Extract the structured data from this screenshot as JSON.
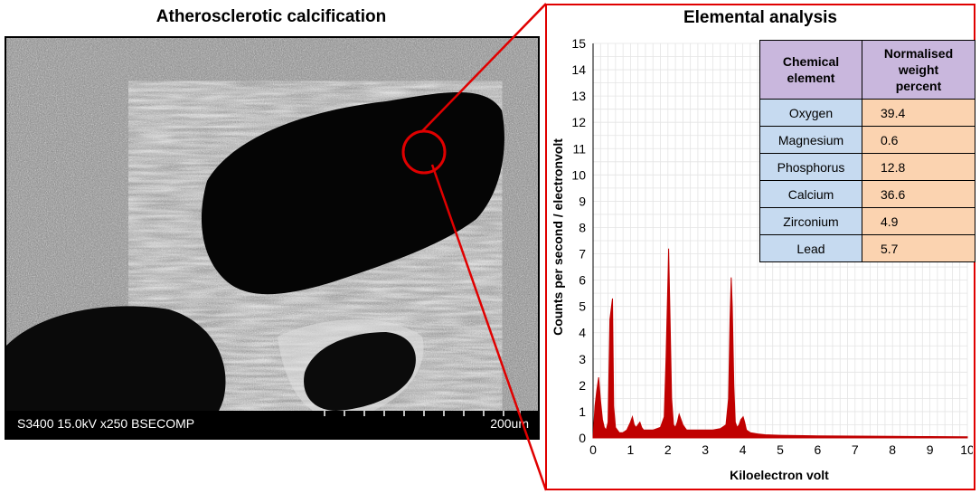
{
  "left_panel": {
    "title": "Atherosclerotic calcification",
    "sem_label": "S3400 15.0kV x250 BSECOMP",
    "scale_label": "200um"
  },
  "right_panel": {
    "title": "Elemental analysis"
  },
  "table": {
    "header_element": [
      "Chemical",
      "element"
    ],
    "header_percent": [
      "Normalised",
      "weight",
      "percent"
    ],
    "rows": [
      {
        "element": "Oxygen",
        "percent": "39.4"
      },
      {
        "element": "Magnesium",
        "percent": "0.6"
      },
      {
        "element": "Phosphorus",
        "percent": "12.8"
      },
      {
        "element": "Calcium",
        "percent": "36.6"
      },
      {
        "element": "Zirconium",
        "percent": "4.9"
      },
      {
        "element": "Lead",
        "percent": "5.7"
      }
    ]
  },
  "colors": {
    "highlight": "#e00000",
    "spectrum": "#c00000",
    "element_cells": "#c6daf0",
    "percent_cells": "#fbd3b0",
    "header_cells": "#c9b7dd"
  },
  "chart_data": {
    "type": "area",
    "title": "Elemental analysis",
    "xlabel": "Kiloelectron volt",
    "ylabel": "Counts per second / electronvolt",
    "xlim": [
      0,
      10
    ],
    "ylim": [
      0,
      15
    ],
    "x_ticks": [
      "0",
      "1",
      "2",
      "3",
      "4",
      "5",
      "6",
      "7",
      "8",
      "9",
      "10"
    ],
    "y_ticks": [
      "0",
      "1",
      "2",
      "3",
      "4",
      "5",
      "6",
      "7",
      "8",
      "9",
      "10",
      "11",
      "12",
      "13",
      "14",
      "15"
    ],
    "grid": true,
    "series": [
      {
        "x": [
          0,
          0.05,
          0.1,
          0.15,
          0.2,
          0.25,
          0.3,
          0.35,
          0.4,
          0.45,
          0.52,
          0.55,
          0.6,
          0.7,
          0.8,
          0.9,
          1.0,
          1.05,
          1.1,
          1.15,
          1.2,
          1.25,
          1.3,
          1.35,
          1.4,
          1.5,
          1.6,
          1.7,
          1.8,
          1.9,
          1.95,
          2.0,
          2.02,
          2.05,
          2.1,
          2.15,
          2.2,
          2.25,
          2.3,
          2.35,
          2.4,
          2.45,
          2.5,
          2.6,
          2.7,
          2.8,
          2.9,
          3.0,
          3.2,
          3.4,
          3.55,
          3.62,
          3.66,
          3.69,
          3.72,
          3.76,
          3.8,
          3.85,
          3.9,
          3.95,
          4.01,
          4.05,
          4.1,
          4.2,
          4.4,
          4.6,
          5.0,
          6.0,
          7.0,
          8.0,
          9.0,
          10.0
        ],
        "y": [
          0,
          1.2,
          1.8,
          2.3,
          1.4,
          0.7,
          0.4,
          0.3,
          0.6,
          4.5,
          5.3,
          1.2,
          0.4,
          0.2,
          0.2,
          0.3,
          0.6,
          0.8,
          0.5,
          0.4,
          0.5,
          0.6,
          0.4,
          0.3,
          0.3,
          0.3,
          0.3,
          0.35,
          0.4,
          0.8,
          3.0,
          6.0,
          7.2,
          5.0,
          1.5,
          0.5,
          0.4,
          0.6,
          0.9,
          0.7,
          0.5,
          0.4,
          0.3,
          0.3,
          0.3,
          0.3,
          0.3,
          0.3,
          0.3,
          0.35,
          0.5,
          1.5,
          4.5,
          6.1,
          5.0,
          2.0,
          0.6,
          0.4,
          0.5,
          0.7,
          0.8,
          0.6,
          0.3,
          0.2,
          0.15,
          0.12,
          0.1,
          0.08,
          0.07,
          0.06,
          0.05,
          0.04
        ]
      }
    ]
  }
}
